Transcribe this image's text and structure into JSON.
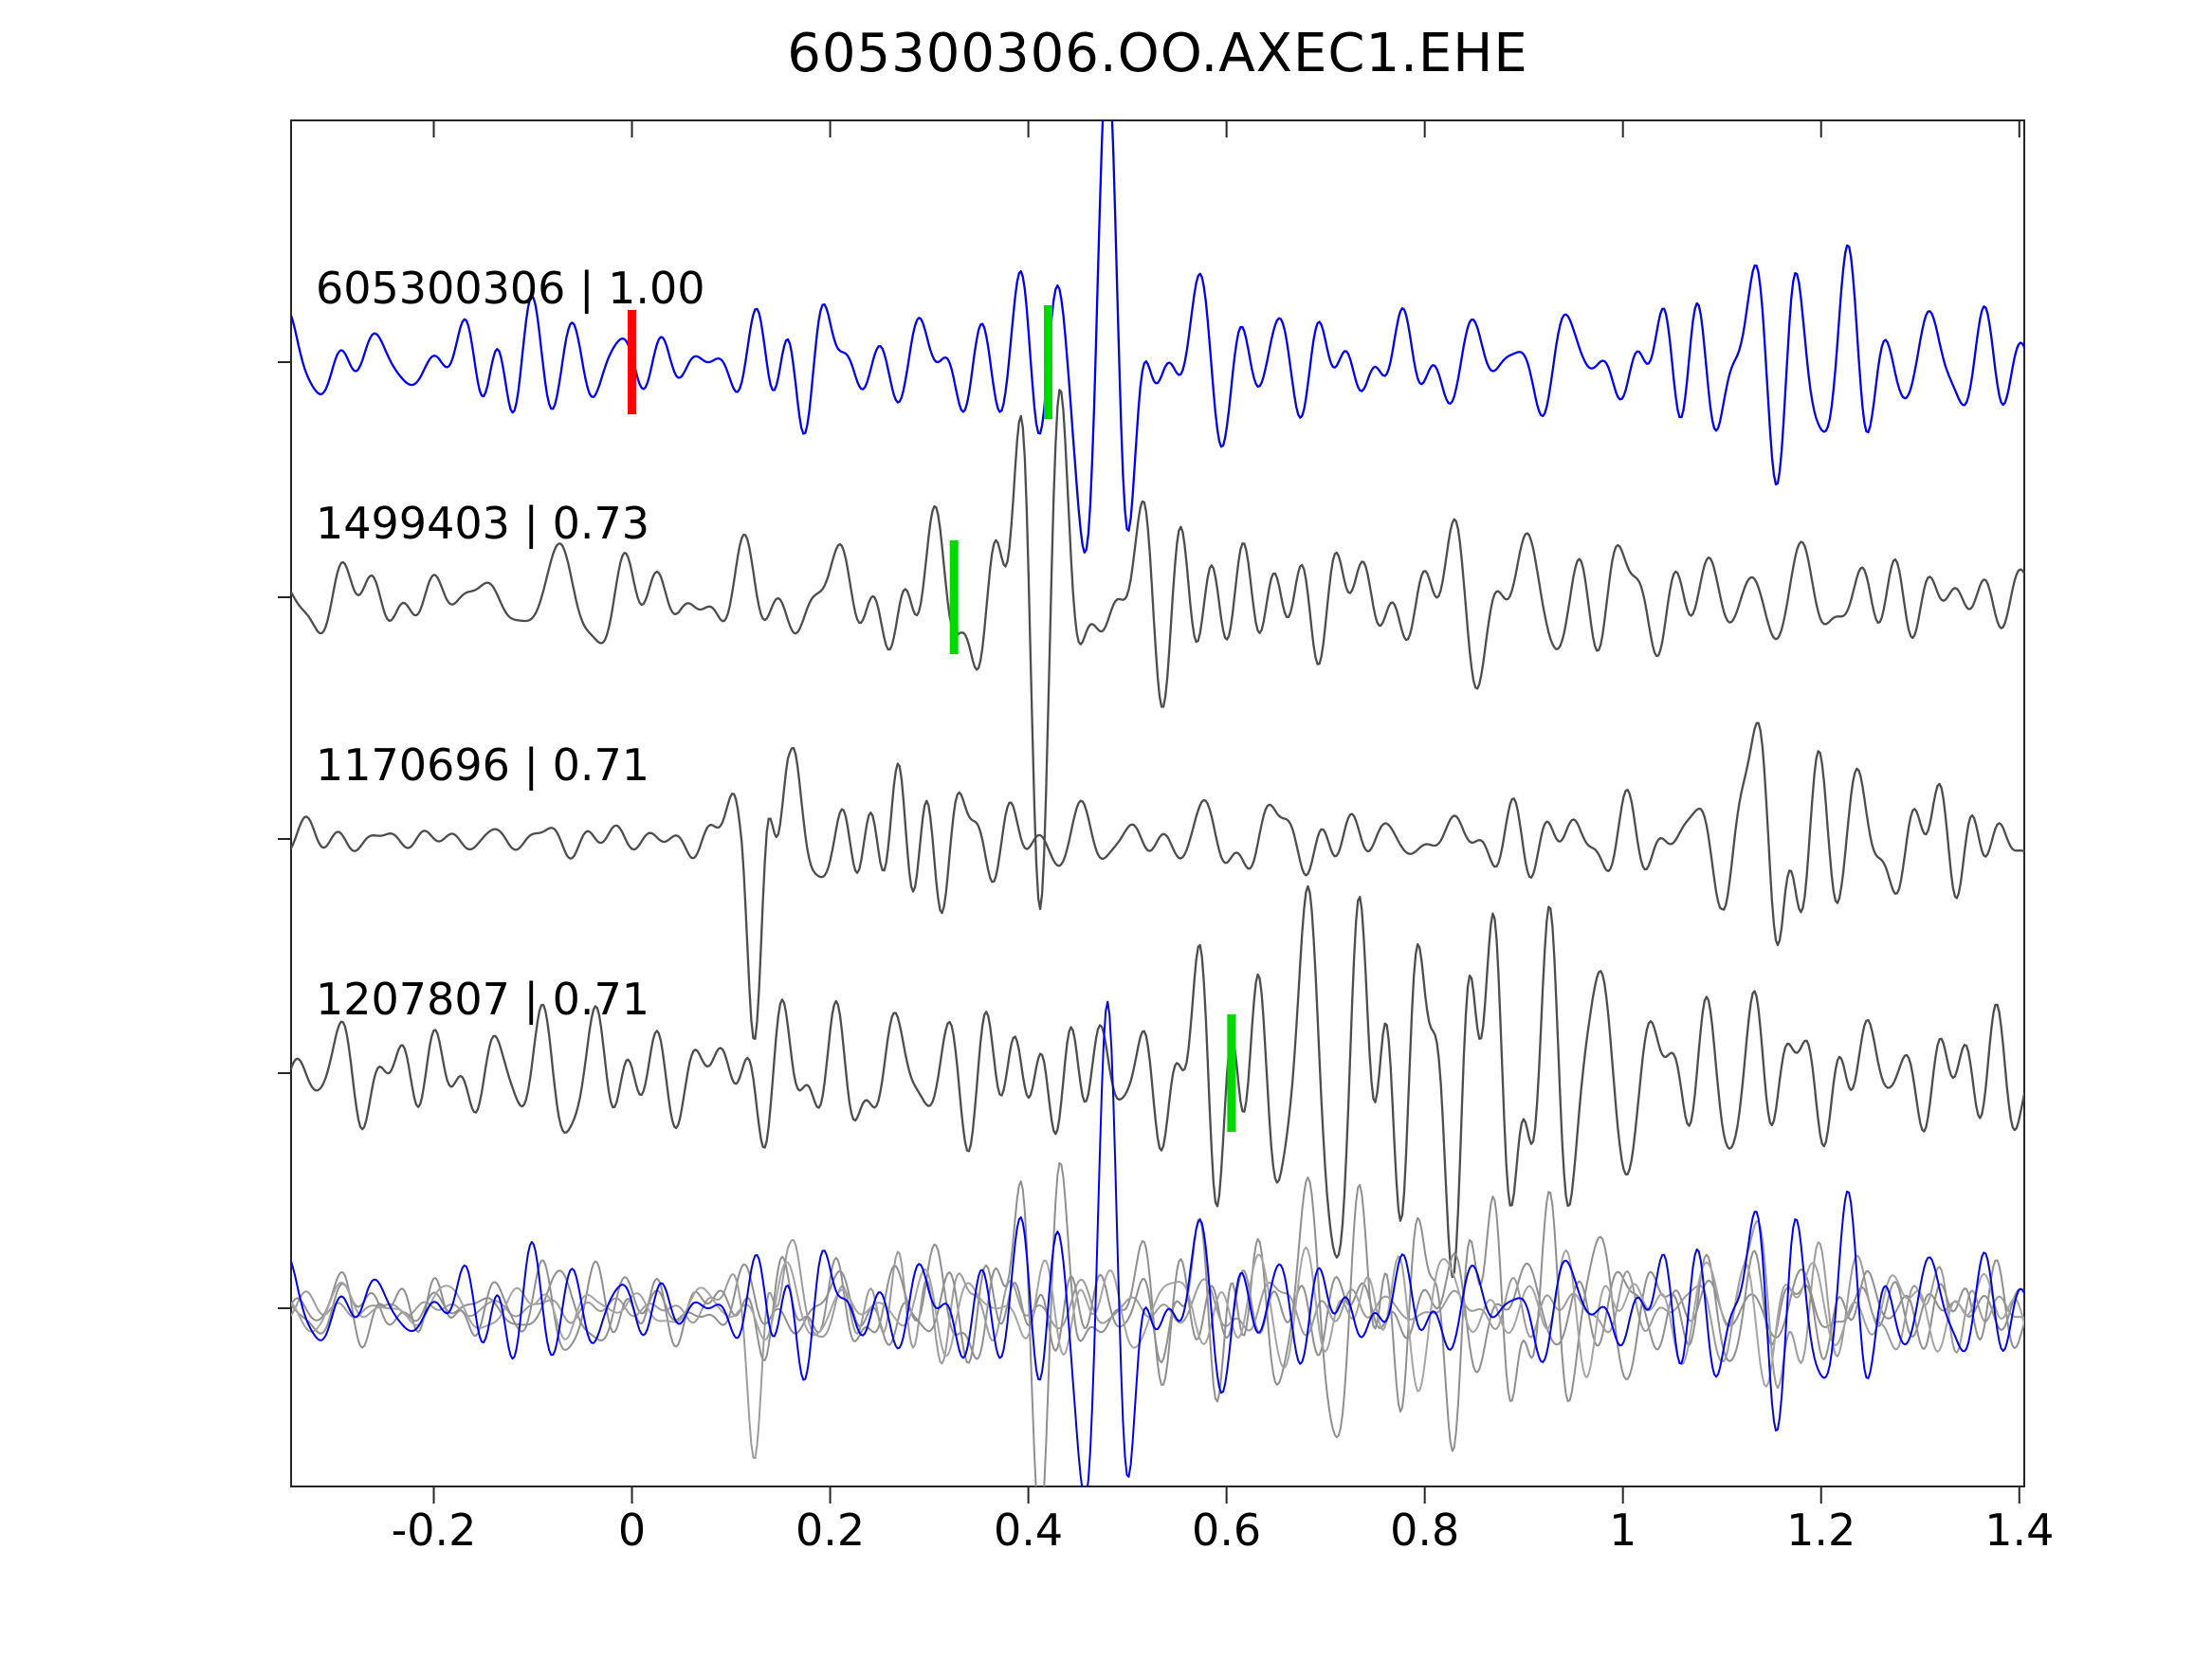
{
  "title": "605300306.OO.AXEC1.EHE",
  "colors": {
    "background": "#ffffff",
    "axis": "#262626",
    "text": "#000000",
    "template": "#0000ee",
    "match": "#4d4d4d",
    "overlay_gray": "#8f8f8f",
    "overlay_gray_light": "#9c9c9c",
    "marker_green": "#00d800",
    "marker_red": "#ff0000"
  },
  "chart_data": {
    "type": "line",
    "subtype": "seismic-waveform-stack",
    "title": "605300306.OO.AXEC1.EHE",
    "xlabel": "",
    "ylabel": "",
    "x_range": [
      -0.344,
      1.405
    ],
    "x_ticks": [
      -0.2,
      0,
      0.2,
      0.4,
      0.6,
      0.8,
      1,
      1.2,
      1.4
    ],
    "x_tick_labels": [
      "-0.2",
      "0",
      "0.2",
      "0.4",
      "0.6",
      "0.8",
      "1",
      "1.2",
      "1.4"
    ],
    "grid": false,
    "legend": false,
    "traces": [
      {
        "id": "605300306",
        "label": "605300306 | 1.00",
        "correlation": 1.0,
        "role": "template",
        "color": "#0000ee",
        "seed": 11,
        "amplitude": 85,
        "envelope": [
          [
            -0.35,
            0.55
          ],
          [
            -0.15,
            0.6
          ],
          [
            0.0,
            0.55
          ],
          [
            0.1,
            0.6
          ],
          [
            0.2,
            0.75
          ],
          [
            0.3,
            0.7
          ],
          [
            0.38,
            1.5
          ],
          [
            0.44,
            2.1
          ],
          [
            0.52,
            1.9
          ],
          [
            0.6,
            1.2
          ],
          [
            0.7,
            0.95
          ],
          [
            0.85,
            0.85
          ],
          [
            1.0,
            0.8
          ],
          [
            1.1,
            1.0
          ],
          [
            1.17,
            1.45
          ],
          [
            1.25,
            1.0
          ],
          [
            1.32,
            0.9
          ],
          [
            1.41,
            0.7
          ]
        ],
        "markers": [
          {
            "x": 0.0,
            "color": "#ff0000",
            "name": "template-origin-marker",
            "half_height": 55
          },
          {
            "x": 0.42,
            "color": "#00d800",
            "name": "pick-marker",
            "half_height": 60
          }
        ]
      },
      {
        "id": "1499403",
        "label": "1499403 | 0.73",
        "correlation": 0.73,
        "role": "match",
        "color": "#4d4d4d",
        "seed": 22,
        "amplitude": 85,
        "envelope": [
          [
            -0.35,
            0.5
          ],
          [
            -0.1,
            0.55
          ],
          [
            0.05,
            0.65
          ],
          [
            0.18,
            0.8
          ],
          [
            0.27,
            1.1
          ],
          [
            0.33,
            0.9
          ],
          [
            0.4,
            2.2
          ],
          [
            0.47,
            1.6
          ],
          [
            0.52,
            1.9
          ],
          [
            0.6,
            1.1
          ],
          [
            0.7,
            1.0
          ],
          [
            0.8,
            0.85
          ],
          [
            0.95,
            0.75
          ],
          [
            1.1,
            0.7
          ],
          [
            1.25,
            0.65
          ],
          [
            1.41,
            0.6
          ]
        ],
        "markers": [
          {
            "x": 0.325,
            "color": "#00d800",
            "name": "pick-marker",
            "half_height": 60
          }
        ]
      },
      {
        "id": "1170696",
        "label": "1170696 | 0.71",
        "correlation": 0.71,
        "role": "match",
        "color": "#4d4d4d",
        "seed": 33,
        "amplitude": 85,
        "envelope": [
          [
            -0.35,
            0.22
          ],
          [
            0.05,
            0.28
          ],
          [
            0.11,
            0.5
          ],
          [
            0.135,
            2.4
          ],
          [
            0.16,
            1.0
          ],
          [
            0.2,
            0.7
          ],
          [
            0.27,
            1.05
          ],
          [
            0.33,
            0.95
          ],
          [
            0.4,
            0.7
          ],
          [
            0.5,
            0.5
          ],
          [
            0.6,
            0.5
          ],
          [
            0.75,
            0.45
          ],
          [
            0.9,
            0.45
          ],
          [
            1.02,
            0.4
          ],
          [
            1.1,
            0.6
          ],
          [
            1.16,
            2.0
          ],
          [
            1.22,
            1.1
          ],
          [
            1.3,
            0.8
          ],
          [
            1.41,
            0.6
          ]
        ],
        "markers": []
      },
      {
        "id": "1207807",
        "label": "1207807 | 0.71",
        "correlation": 0.71,
        "role": "match",
        "color": "#4d4d4d",
        "seed": 44,
        "amplitude": 85,
        "envelope": [
          [
            -0.35,
            0.75
          ],
          [
            -0.2,
            0.85
          ],
          [
            0.0,
            0.8
          ],
          [
            0.15,
            0.9
          ],
          [
            0.3,
            0.95
          ],
          [
            0.45,
            1.05
          ],
          [
            0.55,
            1.3
          ],
          [
            0.65,
            1.8
          ],
          [
            0.75,
            2.1
          ],
          [
            0.85,
            2.2
          ],
          [
            0.95,
            1.4
          ],
          [
            1.05,
            1.1
          ],
          [
            1.15,
            1.4
          ],
          [
            1.25,
            1.5
          ],
          [
            1.33,
            1.1
          ],
          [
            1.41,
            0.9
          ]
        ],
        "markers": [
          {
            "x": 0.605,
            "color": "#00d800",
            "name": "pick-marker",
            "half_height": 62
          }
        ]
      }
    ],
    "overlay": {
      "description": "all matched waveforms overlaid with the template",
      "members": [
        {
          "trace_index": 1,
          "scale": 0.7,
          "color": "#8f8f8f"
        },
        {
          "trace_index": 2,
          "scale": 0.75,
          "color": "#9c9c9c"
        },
        {
          "trace_index": 3,
          "scale": 0.7,
          "color": "#8f8f8f"
        },
        {
          "seed": 55,
          "amplitude": 85,
          "scale": 0.65,
          "color": "#a5a5a5",
          "envelope": [
            [
              -0.35,
              0.5
            ],
            [
              0.1,
              0.55
            ],
            [
              0.3,
              0.7
            ],
            [
              0.45,
              1.3
            ],
            [
              0.6,
              1.0
            ],
            [
              0.75,
              1.6
            ],
            [
              0.85,
              1.2
            ],
            [
              1.0,
              0.8
            ],
            [
              1.15,
              1.2
            ],
            [
              1.41,
              0.7
            ]
          ]
        },
        {
          "trace_index": 0,
          "scale": 1.0,
          "color": "#0000ee"
        }
      ]
    }
  }
}
